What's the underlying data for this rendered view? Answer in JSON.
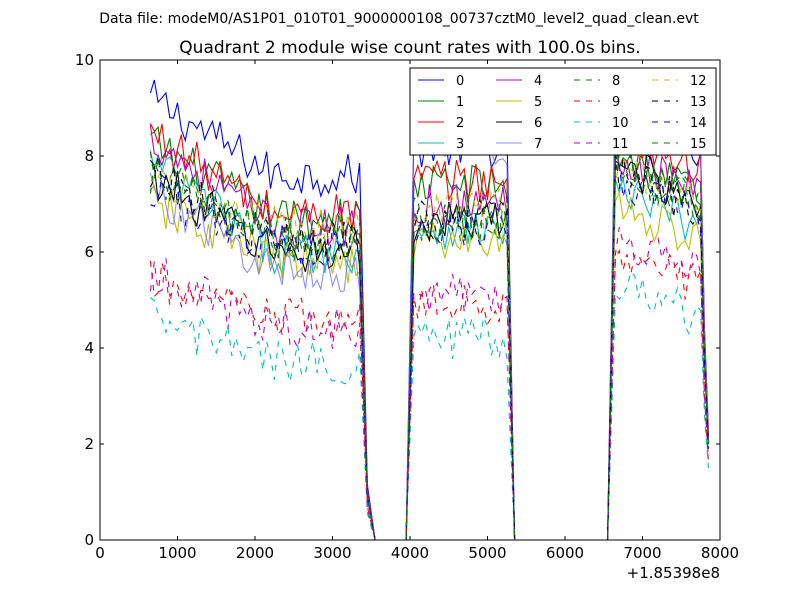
{
  "header": {
    "data_file": "Data file: modeM0/AS1P01_010T01_9000000108_00737cztM0_level2_quad_clean.evt"
  },
  "chart_data": {
    "type": "line",
    "title": "Quadrant 2 module wise count rates with 100.0s bins.",
    "x_offset_label": "+1.85398e8",
    "xlim": [
      0,
      8000
    ],
    "ylim": [
      0,
      10
    ],
    "x_ticks": [
      0,
      1000,
      2000,
      3000,
      4000,
      5000,
      6000,
      7000,
      8000
    ],
    "y_ticks": [
      0,
      2,
      4,
      6,
      8,
      10
    ],
    "grid": false,
    "legend_position": "top-right",
    "legend_columns": 4,
    "orbit_windows": [
      {
        "start": 650,
        "end": 3350
      },
      {
        "start": 4050,
        "end": 5250
      },
      {
        "start": 6650,
        "end": 7750
      }
    ],
    "gap_segments": [
      [
        3350,
        3450,
        3550,
        3650,
        3750,
        3850,
        3950
      ],
      [
        5250,
        5350,
        5450,
        5550,
        5650,
        5750,
        5850,
        5950,
        6050,
        6150,
        6250,
        6350,
        6450,
        6550
      ],
      [
        7750,
        7850
      ]
    ],
    "series": [
      {
        "name": "0",
        "color": "#0000ff",
        "dash": "solid",
        "opacity": 1.0,
        "w1": 7.6,
        "w2": 8.2,
        "w3": 8.2,
        "start": 9.2,
        "end_values": [
          4.4,
          2.3
        ]
      },
      {
        "name": "1",
        "color": "#008000",
        "dash": "solid",
        "opacity": 1.0,
        "w1": 6.7,
        "w2": 7.4,
        "w3": 7.3,
        "start": 8.3,
        "end_values": [
          4.0,
          2.1
        ]
      },
      {
        "name": "2",
        "color": "#ff0000",
        "dash": "solid",
        "opacity": 1.0,
        "w1": 6.8,
        "w2": 7.5,
        "w3": 7.7,
        "start": 8.5,
        "end_values": [
          4.2,
          2.2
        ]
      },
      {
        "name": "3",
        "color": "#00bfbf",
        "dash": "solid",
        "opacity": 1.0,
        "w1": 6.0,
        "w2": 6.5,
        "w3": 6.5,
        "start": 7.9,
        "end_values": [
          3.8,
          2.0
        ]
      },
      {
        "name": "4",
        "color": "#bf00bf",
        "dash": "solid",
        "opacity": 1.0,
        "w1": 6.5,
        "w2": 7.0,
        "w3": 7.3,
        "start": 8.4,
        "end_values": [
          4.0,
          2.1
        ]
      },
      {
        "name": "5",
        "color": "#bfbf00",
        "dash": "solid",
        "opacity": 1.0,
        "w1": 5.8,
        "w2": 6.2,
        "w3": 6.2,
        "start": 7.0,
        "end_values": [
          3.6,
          1.9
        ]
      },
      {
        "name": "6",
        "color": "#000000",
        "dash": "solid",
        "opacity": 1.0,
        "w1": 6.0,
        "w2": 6.6,
        "w3": 7.1,
        "start": 7.6,
        "end_values": [
          3.9,
          2.0
        ]
      },
      {
        "name": "7",
        "color": "#6a6aff",
        "dash": "solid",
        "opacity": 0.75,
        "w1": 5.6,
        "w2": 8.2,
        "w3": 8.5,
        "start": 7.3,
        "end_values": [
          4.3,
          2.2
        ]
      },
      {
        "name": "8",
        "color": "#008000",
        "dash": "dashed",
        "opacity": 1.0,
        "w1": 6.2,
        "w2": 6.6,
        "w3": 7.0,
        "start": 7.7,
        "end_values": [
          3.9,
          2.0
        ]
      },
      {
        "name": "9",
        "color": "#ff0000",
        "dash": "dashed",
        "opacity": 1.0,
        "w1": 4.6,
        "w2": 4.9,
        "w3": 5.3,
        "start": 5.4,
        "end_values": [
          3.0,
          1.6
        ]
      },
      {
        "name": "10",
        "color": "#00bfbf",
        "dash": "dashed",
        "opacity": 1.0,
        "w1": 3.7,
        "w2": 4.2,
        "w3": 4.6,
        "start": 4.6,
        "end_values": [
          2.6,
          1.5
        ]
      },
      {
        "name": "11",
        "color": "#bf00bf",
        "dash": "dashed",
        "opacity": 1.0,
        "w1": 4.4,
        "w2": 5.2,
        "w3": 5.5,
        "start": 5.6,
        "end_values": [
          3.0,
          1.7
        ]
      },
      {
        "name": "12",
        "color": "#bfbf00",
        "dash": "dashed",
        "opacity": 1.0,
        "w1": 6.5,
        "w2": 6.9,
        "w3": 7.1,
        "start": 7.6,
        "end_values": [
          3.9,
          2.0
        ]
      },
      {
        "name": "13",
        "color": "#000000",
        "dash": "dashed",
        "opacity": 1.0,
        "w1": 6.2,
        "w2": 6.7,
        "w3": 6.9,
        "start": 7.7,
        "end_values": [
          3.8,
          2.0
        ]
      },
      {
        "name": "14",
        "color": "#0000ff",
        "dash": "dashed",
        "opacity": 1.0,
        "w1": 6.1,
        "w2": 6.5,
        "w3": 6.8,
        "start": 7.3,
        "end_values": [
          3.7,
          1.9
        ]
      },
      {
        "name": "15",
        "color": "#008000",
        "dash": "dashed",
        "opacity": 1.0,
        "w1": 6.3,
        "w2": 6.7,
        "w3": 7.0,
        "start": 7.5,
        "end_values": [
          3.8,
          2.0
        ]
      }
    ]
  }
}
